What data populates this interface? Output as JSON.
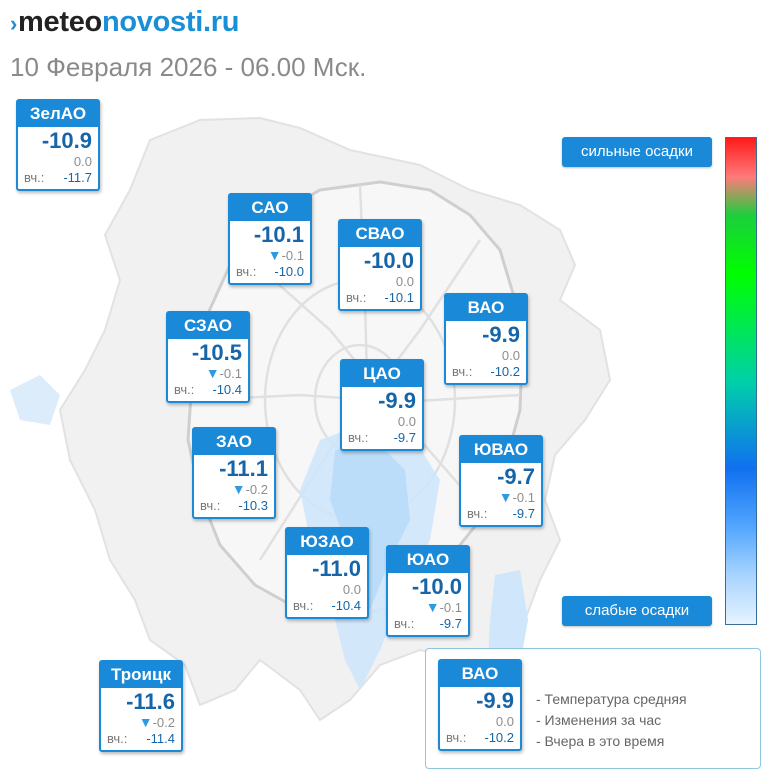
{
  "header": {
    "logo_prefix": "meteo",
    "logo_suffix": "novosti.ru",
    "subtitle": "10 Февраля 2026 - 06.00 Мск."
  },
  "icons": {
    "logo_mark": "chevron-right-icon",
    "trend": "triangle-down-icon"
  },
  "colors": {
    "accent": "#1a8ad8",
    "temperature_text": "#1565a8",
    "change_arrow": "#2e9be0"
  },
  "districts": [
    {
      "id": "zelao",
      "name": "ЗелАО",
      "temp": "-10.9",
      "change": "0.0",
      "falling": false,
      "yesterday_label": "вч.:",
      "yesterday": "-11.7"
    },
    {
      "id": "sao",
      "name": "САО",
      "temp": "-10.1",
      "change": "-0.1",
      "falling": true,
      "yesterday_label": "вч.:",
      "yesterday": "-10.0"
    },
    {
      "id": "svao",
      "name": "СВАО",
      "temp": "-10.0",
      "change": "0.0",
      "falling": false,
      "yesterday_label": "вч.:",
      "yesterday": "-10.1"
    },
    {
      "id": "vao",
      "name": "ВАО",
      "temp": "-9.9",
      "change": "0.0",
      "falling": false,
      "yesterday_label": "вч.:",
      "yesterday": "-10.2"
    },
    {
      "id": "szao",
      "name": "СЗАО",
      "temp": "-10.5",
      "change": "-0.1",
      "falling": true,
      "yesterday_label": "вч.:",
      "yesterday": "-10.4"
    },
    {
      "id": "cao",
      "name": "ЦАО",
      "temp": "-9.9",
      "change": "0.0",
      "falling": false,
      "yesterday_label": "вч.:",
      "yesterday": "-9.7"
    },
    {
      "id": "zao",
      "name": "ЗАО",
      "temp": "-11.1",
      "change": "-0.2",
      "falling": true,
      "yesterday_label": "вч.:",
      "yesterday": "-10.3"
    },
    {
      "id": "yuvao",
      "name": "ЮВАО",
      "temp": "-9.7",
      "change": "-0.1",
      "falling": true,
      "yesterday_label": "вч.:",
      "yesterday": "-9.7"
    },
    {
      "id": "yuzao",
      "name": "ЮЗАО",
      "temp": "-11.0",
      "change": "0.0",
      "falling": false,
      "yesterday_label": "вч.:",
      "yesterday": "-10.4"
    },
    {
      "id": "yuao",
      "name": "ЮАО",
      "temp": "-10.0",
      "change": "-0.1",
      "falling": true,
      "yesterday_label": "вч.:",
      "yesterday": "-9.7"
    },
    {
      "id": "troick",
      "name": "Троицк",
      "temp": "-11.6",
      "change": "-0.2",
      "falling": true,
      "yesterday_label": "вч.:",
      "yesterday": "-11.4"
    }
  ],
  "precip_scale": {
    "top_label": "сильные осадки",
    "bottom_label": "слабые осадки"
  },
  "legend": {
    "sample": {
      "name": "ВАО",
      "temp": "-9.9",
      "change": "0.0",
      "falling": false,
      "yesterday_label": "вч.:",
      "yesterday": "-10.2"
    },
    "items": [
      "- Температура средняя",
      "- Изменения за час",
      "- Вчера в это время"
    ]
  }
}
